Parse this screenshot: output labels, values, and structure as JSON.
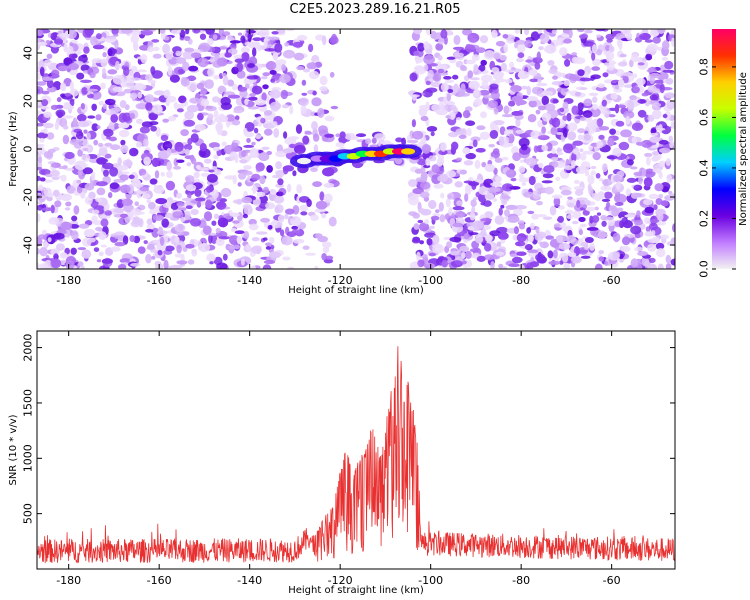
{
  "title": "C2E5.2023.289.16.21.R05",
  "chart_data": [
    {
      "type": "heatmap",
      "xlabel": "Height of straight line (km)",
      "ylabel": "Frequency (Hz)",
      "xlim": [
        -187,
        -46
      ],
      "ylim": [
        -50,
        50
      ],
      "x_ticks": [
        -180,
        -160,
        -140,
        -120,
        -100,
        -80,
        -60
      ],
      "y_ticks": [
        -40,
        -20,
        0,
        20,
        40
      ],
      "colorbar": {
        "label": "Normalized spectral amplitude",
        "range": [
          0,
          0.95
        ],
        "ticks": [
          0.0,
          0.2,
          0.4,
          0.6,
          0.8
        ],
        "colormap": [
          "#f2f2f2",
          "#c07bff",
          "#6a00e0",
          "#0000ff",
          "#00cfff",
          "#00ff40",
          "#c8ff00",
          "#ffd000",
          "#ff3000",
          "#ff0066"
        ]
      },
      "noise_gap_x": [
        -121,
        -104
      ],
      "signal_track": [
        {
          "x": -128,
          "f": -5,
          "a": 0.05
        },
        {
          "x": -125,
          "f": -4,
          "a": 0.15
        },
        {
          "x": -123,
          "f": -4,
          "a": 0.22
        },
        {
          "x": -121,
          "f": -4,
          "a": 0.3
        },
        {
          "x": -119,
          "f": -3,
          "a": 0.45
        },
        {
          "x": -117,
          "f": -3,
          "a": 0.6
        },
        {
          "x": -115,
          "f": -2,
          "a": 0.55
        },
        {
          "x": -113,
          "f": -2,
          "a": 0.7
        },
        {
          "x": -111,
          "f": -2,
          "a": 0.8
        },
        {
          "x": -109,
          "f": -1,
          "a": 0.65
        },
        {
          "x": -107,
          "f": -1,
          "a": 0.9
        },
        {
          "x": -105,
          "f": -1,
          "a": 0.75
        }
      ]
    },
    {
      "type": "line",
      "xlabel": "Height of straight line (km)",
      "ylabel": "SNR (10 * v/v)",
      "xlim": [
        -187,
        -46
      ],
      "ylim": [
        0,
        2150
      ],
      "x_ticks": [
        -180,
        -160,
        -140,
        -120,
        -100,
        -80,
        -60
      ],
      "y_ticks": [
        500,
        1000,
        1500,
        2000
      ],
      "series": [
        {
          "color": "#e83030",
          "baseline": 160,
          "noise_amplitude": 110,
          "envelope": [
            {
              "x": -187,
              "y": 160
            },
            {
              "x": -130,
              "y": 170
            },
            {
              "x": -125,
              "y": 350
            },
            {
              "x": -121,
              "y": 700
            },
            {
              "x": -119,
              "y": 1100
            },
            {
              "x": -117,
              "y": 900
            },
            {
              "x": -115,
              "y": 1050
            },
            {
              "x": -113,
              "y": 1300
            },
            {
              "x": -111,
              "y": 1050
            },
            {
              "x": -110,
              "y": 1300
            },
            {
              "x": -108,
              "y": 1800
            },
            {
              "x": -107,
              "y": 2150
            },
            {
              "x": -106,
              "y": 1600
            },
            {
              "x": -105,
              "y": 1750
            },
            {
              "x": -104,
              "y": 1500
            },
            {
              "x": -103,
              "y": 1200
            },
            {
              "x": -102,
              "y": 230
            },
            {
              "x": -46,
              "y": 170
            }
          ]
        }
      ]
    }
  ]
}
